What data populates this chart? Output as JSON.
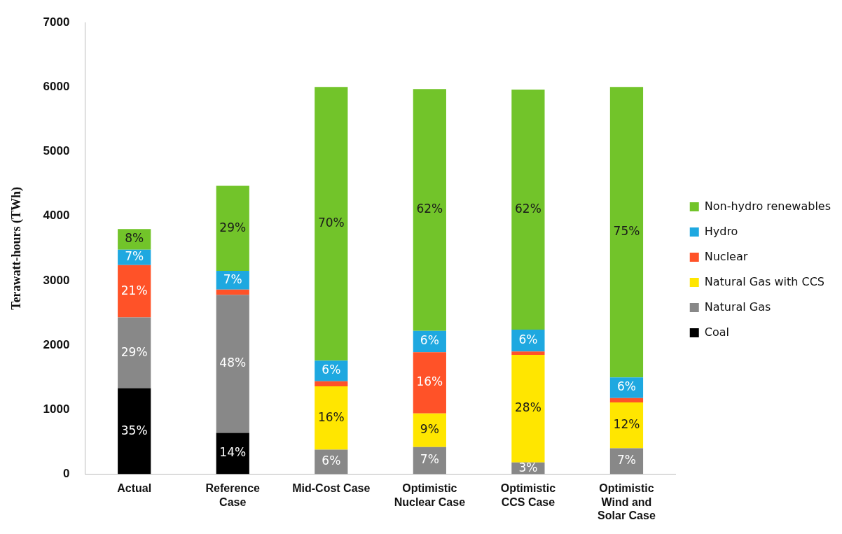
{
  "chart_data": {
    "type": "bar",
    "stacked": true,
    "ylabel": "Terawatt-hours (TWh)",
    "categories": [
      "Actual",
      "Reference Case",
      "Mid-Cost Case",
      "Optimistic Nuclear Case",
      "Optimistic CCS Case",
      "Optimistic Wind and Solar Case"
    ],
    "ylim": [
      0,
      7000
    ],
    "yticks": [
      0,
      1000,
      2000,
      3000,
      4000,
      5000,
      6000,
      7000
    ],
    "grid": false,
    "legend": "right",
    "series": [
      {
        "name": "Coal",
        "color": "#000000",
        "values": [
          1330,
          640,
          null,
          null,
          null,
          null
        ]
      },
      {
        "name": "Natural Gas",
        "color": "#888888",
        "values": [
          1100,
          2140,
          380,
          420,
          180,
          400
        ]
      },
      {
        "name": "Natural Gas with CCS",
        "color": "#ffe600",
        "values": [
          null,
          null,
          980,
          520,
          1670,
          710
        ]
      },
      {
        "name": "Nuclear",
        "color": "#ff5228",
        "values": [
          810,
          80,
          80,
          950,
          50,
          70
        ]
      },
      {
        "name": "Hydro",
        "color": "#1ea8e0",
        "values": [
          240,
          290,
          320,
          330,
          340,
          320
        ]
      },
      {
        "name": "Non-hydro renewables",
        "color": "#72c42a",
        "values": [
          320,
          1320,
          4240,
          3750,
          3720,
          4500
        ]
      }
    ],
    "annotations": [
      "35%",
      "29%",
      "21%",
      "7%",
      "8%",
      "14%",
      "48%",
      "7%",
      "29%",
      "6%",
      "16%",
      "6%",
      "70%",
      "7%",
      "9%",
      "16%",
      "6%",
      "62%",
      "3%",
      "28%",
      "6%",
      "62%",
      "7%",
      "12%",
      "6%",
      "75%"
    ]
  }
}
